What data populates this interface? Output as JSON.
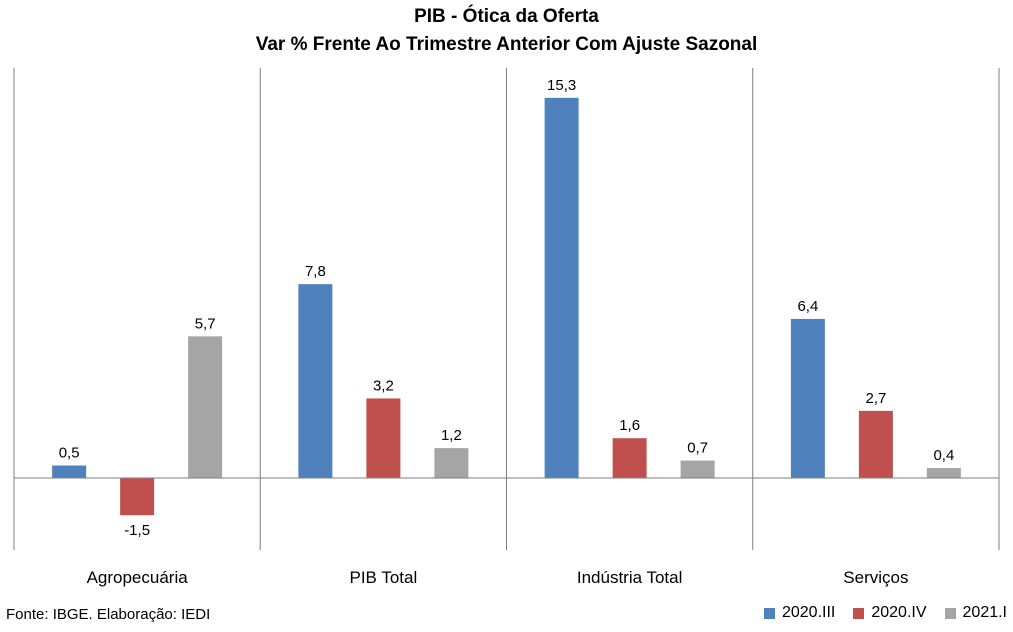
{
  "chart_data": {
    "type": "bar",
    "title": "PIB - Ótica da Oferta",
    "subtitle": "Var % Frente Ao Trimestre Anterior Com Ajuste Sazonal",
    "categories": [
      "Agropecuária",
      "PIB Total",
      "Indústria Total",
      "Serviços"
    ],
    "series": [
      {
        "name": "2020.III",
        "color": "#4f81bd",
        "values": [
          0.5,
          7.8,
          15.3,
          6.4
        ],
        "labels": [
          "0,5",
          "7,8",
          "15,3",
          "6,4"
        ]
      },
      {
        "name": "2020.IV",
        "color": "#c0504d",
        "values": [
          -1.5,
          3.2,
          1.6,
          2.7
        ],
        "labels": [
          "-1,5",
          "3,2",
          "1,6",
          "2,7"
        ]
      },
      {
        "name": "2021.I",
        "color": "#a5a5a5",
        "values": [
          5.7,
          1.2,
          0.7,
          0.4
        ],
        "labels": [
          "5,7",
          "1,2",
          "0,7",
          "0,4"
        ]
      }
    ],
    "ylim": [
      -2.9,
      16.5
    ],
    "grid": false,
    "legend_position": "bottom-right"
  },
  "source": "Fonte: IBGE. Elaboração: IEDI"
}
